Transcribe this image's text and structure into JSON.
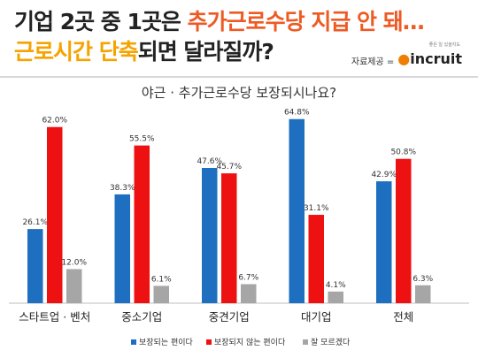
{
  "headline": {
    "line1_part1": "기업 2곳 중 1곳은 ",
    "line1_part2": "추가근로수당 지급 안 돼…",
    "line2_part1": "근로시간 단축",
    "line2_part2": "되면 달라질까?"
  },
  "source": {
    "label": "자료제공 =",
    "logo_tagline": "좋은 일 있을지도",
    "logo_text": "incruit"
  },
  "colors": {
    "series1": "#1f6fc0",
    "series2": "#ee1111",
    "series3": "#a6a6a6",
    "accent_red": "#ee5a24",
    "accent_orange": "#f5a300"
  },
  "chart_data": {
    "type": "bar",
    "title": "야근 · 추가근로수당 보장되시나요?",
    "categories": [
      "스타트업 · 벤처",
      "중소기업",
      "중견기업",
      "대기업",
      "전체"
    ],
    "series": [
      {
        "name": "보장되는 편이다",
        "values": [
          26.1,
          38.3,
          47.6,
          64.8,
          42.9
        ],
        "labels": [
          "26.1%",
          "38.3%",
          "47.6%",
          "64.8%",
          "42.9%"
        ]
      },
      {
        "name": "보장되지 않는 편이다",
        "values": [
          62.0,
          55.5,
          45.7,
          31.1,
          50.8
        ],
        "labels": [
          "62.0%",
          "55.5%",
          "45.7%",
          "31.1%",
          "50.8%"
        ]
      },
      {
        "name": "잘 모르겠다",
        "values": [
          12.0,
          6.1,
          6.7,
          4.1,
          6.3
        ],
        "labels": [
          "12.0%",
          "6.1%",
          "6.7%",
          "4.1%",
          "6.3%"
        ]
      }
    ],
    "ylim": [
      0,
      70
    ],
    "grid": false,
    "legend_position": "bottom"
  }
}
